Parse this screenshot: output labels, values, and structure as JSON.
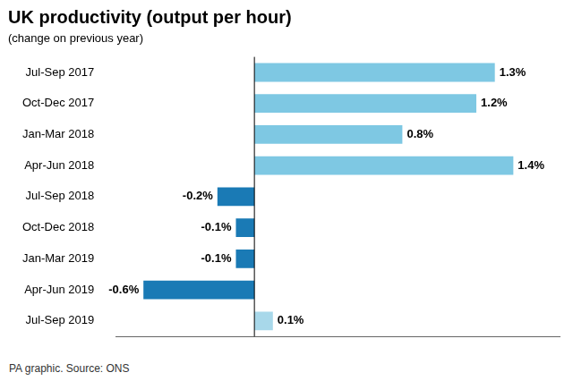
{
  "chart_data": {
    "type": "bar",
    "orientation": "horizontal",
    "title": "UK productivity (output per hour)",
    "subtitle": "(change on previous year)",
    "annotations": [
      "PA graphic. Source: ONS"
    ],
    "categories": [
      "Jul-Sep 2017",
      "Oct-Dec 2017",
      "Jan-Mar 2018",
      "Apr-Jun 2018",
      "Jul-Sep 2018",
      "Oct-Dec 2018",
      "Jan-Mar 2019",
      "Apr-Jun 2019",
      "Jul-Sep 2019"
    ],
    "values": [
      1.3,
      1.2,
      0.8,
      1.4,
      -0.2,
      -0.1,
      -0.1,
      -0.6,
      0.1
    ],
    "value_labels": [
      "1.3%",
      "1.2%",
      "0.8%",
      "1.4%",
      "-0.2%",
      "-0.1%",
      "-0.1%",
      "-0.6%",
      "0.1%"
    ],
    "colors": [
      "#7ec8e3",
      "#7ec8e3",
      "#7ec8e3",
      "#7ec8e3",
      "#1a7ab5",
      "#1a7ab5",
      "#1a7ab5",
      "#1a7ab5",
      "#a8d8ea"
    ],
    "xlim": [
      -0.75,
      1.65
    ],
    "data_labels": true,
    "grid": false,
    "tick_labels": "y"
  }
}
